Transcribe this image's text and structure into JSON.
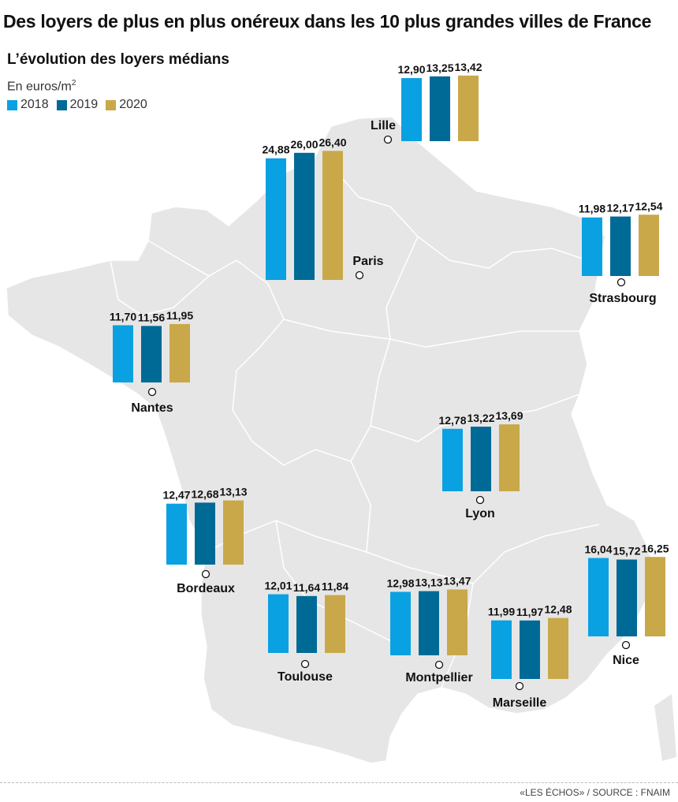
{
  "header": {
    "title": "Des loyers de plus en plus onéreux dans les 10 plus grandes villes de France",
    "subtitle": "L’évolution des loyers médians",
    "unit_prefix": "En euros/m",
    "unit_exponent": "2"
  },
  "legend": [
    {
      "label": "2018",
      "color": "#0aa1e2"
    },
    {
      "label": "2019",
      "color": "#006a96"
    },
    {
      "label": "2020",
      "color": "#c9a84a"
    }
  ],
  "colors": {
    "map_fill": "#e6e6e6",
    "borders": "#ffffff"
  },
  "footer": {
    "source": "«LES ÉCHOS» / SOURCE : FNAIM"
  },
  "chart_data": {
    "type": "bar",
    "title": "L’évolution des loyers médians",
    "ylabel": "En euros/m2",
    "series_names": [
      "2018",
      "2019",
      "2020"
    ],
    "cities": [
      {
        "name": "Lille",
        "values": [
          12.9,
          13.25,
          13.42
        ],
        "labels": [
          "12,90",
          "13,25",
          "13,42"
        ]
      },
      {
        "name": "Paris",
        "values": [
          24.88,
          26.0,
          26.4
        ],
        "labels": [
          "24,88",
          "26,00",
          "26,40"
        ]
      },
      {
        "name": "Strasbourg",
        "values": [
          11.98,
          12.17,
          12.54
        ],
        "labels": [
          "11,98",
          "12,17",
          "12,54"
        ]
      },
      {
        "name": "Nantes",
        "values": [
          11.7,
          11.56,
          11.95
        ],
        "labels": [
          "11,70",
          "11,56",
          "11,95"
        ]
      },
      {
        "name": "Lyon",
        "values": [
          12.78,
          13.22,
          13.69
        ],
        "labels": [
          "12,78",
          "13,22",
          "13,69"
        ]
      },
      {
        "name": "Bordeaux",
        "values": [
          12.47,
          12.68,
          13.13
        ],
        "labels": [
          "12,47",
          "12,68",
          "13,13"
        ]
      },
      {
        "name": "Toulouse",
        "values": [
          12.01,
          11.64,
          11.84
        ],
        "labels": [
          "12,01",
          "11,64",
          "11,84"
        ]
      },
      {
        "name": "Montpellier",
        "values": [
          12.98,
          13.13,
          13.47
        ],
        "labels": [
          "12,98",
          "13,13",
          "13,47"
        ]
      },
      {
        "name": "Marseille",
        "values": [
          11.99,
          11.97,
          12.48
        ],
        "labels": [
          "11,99",
          "11,97",
          "12,48"
        ]
      },
      {
        "name": "Nice",
        "values": [
          16.04,
          15.72,
          16.25
        ],
        "labels": [
          "16,04",
          "15,72",
          "16,25"
        ]
      }
    ]
  }
}
